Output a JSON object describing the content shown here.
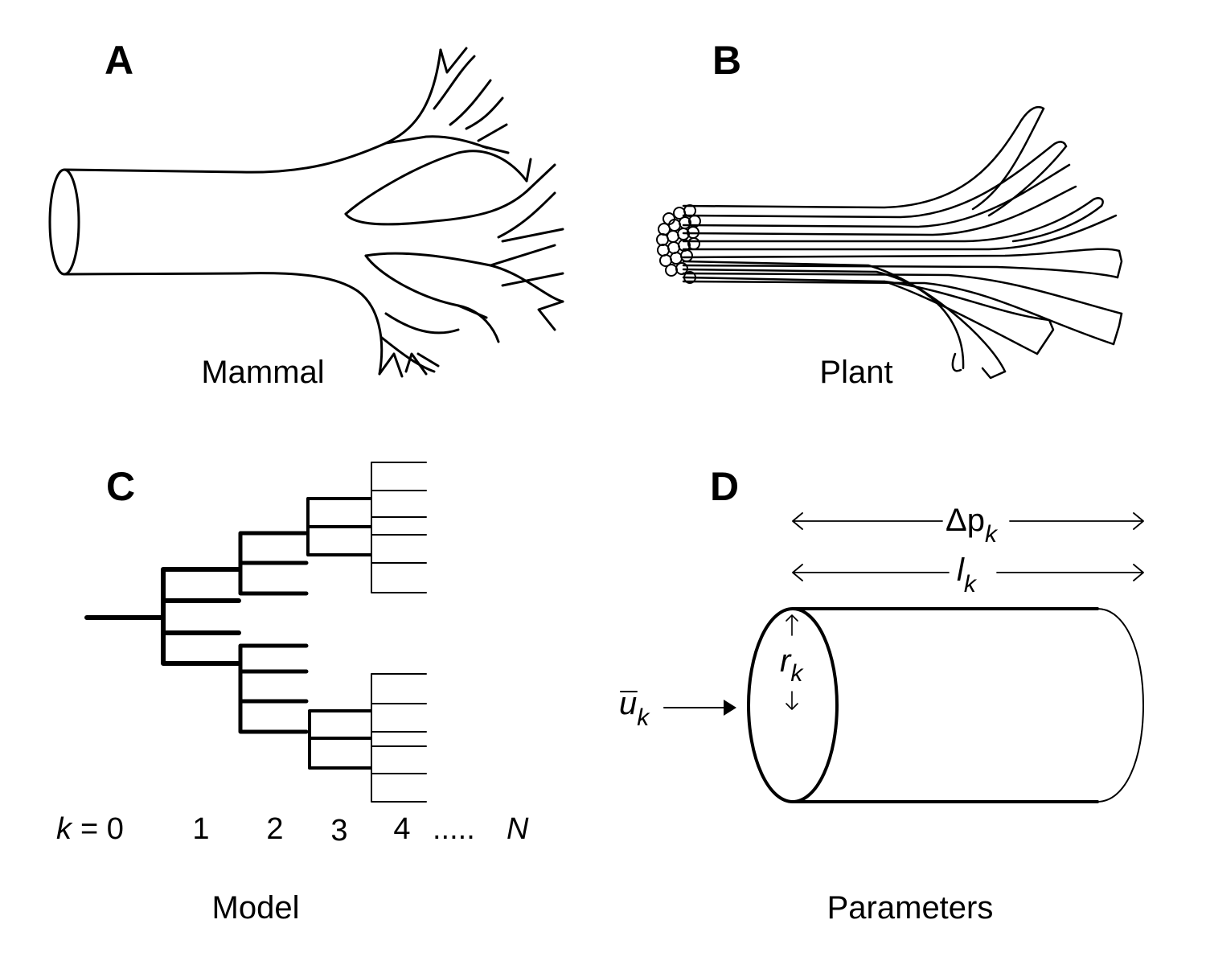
{
  "panels": {
    "a": {
      "letter": "A",
      "caption": "Mammal"
    },
    "b": {
      "letter": "B",
      "caption": "Plant"
    },
    "c": {
      "letter": "C",
      "caption": "Model",
      "k_symbol": "k",
      "k_equals": "= 0",
      "levels": [
        "1",
        "2",
        "3",
        "4"
      ],
      "dots": ".....",
      "last": "N"
    },
    "d": {
      "letter": "D",
      "caption": "Parameters",
      "delta_p": {
        "sym": "Δp",
        "sub": "k"
      },
      "length": {
        "sym": "l",
        "sub": "k"
      },
      "radius": {
        "sym": "r",
        "sub": "k"
      },
      "velocity": {
        "sym": "u",
        "sub": "k"
      }
    }
  }
}
